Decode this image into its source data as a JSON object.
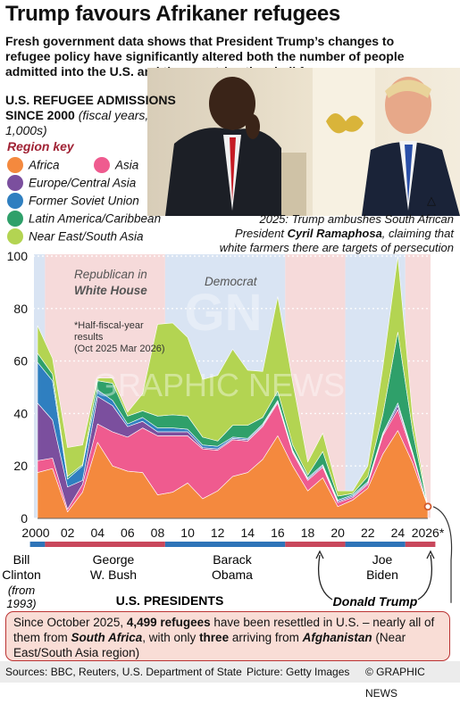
{
  "title": "Trump favours Afrikaner refugees",
  "subtitle": "Fresh government data shows that President Trump’s changes to refugee policy have significantly altered both the number of people admitted into the U.S. and the countries they hail from",
  "chart_heading": {
    "main": "U.S. REFUGEE ADMISSIONS SINCE 2000",
    "sub": "(fiscal years, 1,000s)"
  },
  "legend_title": "Region key",
  "photo_caption": {
    "pre": "2025: Trump ambushes South African President ",
    "bold": "Cyril Ramaphosa",
    "post": ", claiming that white farmers there are targets of persecution"
  },
  "colors": {
    "Africa": "#f4893e",
    "Asia": "#ef5b8f",
    "Europe/Central Asia": "#7b4f9e",
    "Former Soviet Union": "#2f7fc0",
    "Latin America/Caribbean": "#2fa06a",
    "Near East/South Asia": "#b3d452",
    "republican_band": "#f6dada",
    "democrat_band": "#d9e4f3",
    "republican_bar": "#c9485c",
    "democrat_bar": "#2f74b8"
  },
  "chart_data": {
    "type": "area",
    "stacked": true,
    "x": [
      "2000",
      "2001",
      "2002",
      "2003",
      "2004",
      "2005",
      "2006",
      "2007",
      "2008",
      "2009",
      "2010",
      "2011",
      "2012",
      "2013",
      "2014",
      "2015",
      "2016",
      "2017",
      "2018",
      "2019",
      "2020",
      "2021",
      "2022",
      "2023",
      "2024",
      "2025",
      "2026*"
    ],
    "x_tick_labels": [
      "2000",
      "02",
      "04",
      "06",
      "08",
      "10",
      "12",
      "14",
      "16",
      "18",
      "20",
      "22",
      "24",
      "2026*"
    ],
    "ylim": [
      0,
      100
    ],
    "y_ticks": [
      0,
      20,
      40,
      60,
      80,
      100
    ],
    "series": [
      {
        "name": "Africa",
        "values": [
          17.5,
          19,
          2.5,
          10,
          29,
          20,
          18,
          17.5,
          9,
          10,
          13.5,
          7.5,
          10.5,
          16,
          17.5,
          22.5,
          31.5,
          20,
          10.5,
          15.5,
          4.5,
          7,
          11.5,
          24.5,
          33.5,
          21,
          4.5
        ]
      },
      {
        "name": "Asia",
        "values": [
          4.5,
          4,
          1,
          3,
          7,
          13,
          13,
          17,
          22.5,
          21.5,
          18,
          19,
          15.5,
          14,
          12,
          12.5,
          12.5,
          5,
          4,
          4,
          1.5,
          1,
          1.5,
          7,
          8,
          3,
          0
        ]
      },
      {
        "name": "Europe/Central Asia",
        "values": [
          22,
          14.5,
          8.5,
          1.5,
          10.5,
          10,
          4,
          2.5,
          1.5,
          1.5,
          1.5,
          0.5,
          0.5,
          0.5,
          0.5,
          0.5,
          0.5,
          0.5,
          0.5,
          0.5,
          0.5,
          0.5,
          0.5,
          0.5,
          1.5,
          0.5,
          0
        ]
      },
      {
        "name": "Former Soviet Union",
        "values": [
          15.5,
          15,
          3,
          5.5,
          2.5,
          2,
          1,
          1.5,
          1.5,
          1.5,
          1,
          1,
          1,
          0.5,
          0.5,
          0.5,
          0.5,
          0.5,
          0.5,
          0.5,
          0.5,
          0.5,
          0.5,
          0.5,
          1,
          0.5,
          0
        ]
      },
      {
        "name": "Latin America/Caribbean",
        "values": [
          3.5,
          2.5,
          1,
          0.5,
          3.5,
          6.5,
          3,
          2.5,
          4.5,
          5,
          5,
          3,
          2,
          4.5,
          5,
          2.5,
          3.5,
          2,
          1,
          5,
          1.5,
          0.5,
          2,
          7,
          27,
          8,
          0
        ]
      },
      {
        "name": "Near East/South Asia",
        "values": [
          10.5,
          6,
          11,
          7.5,
          1,
          2,
          1.5,
          6.5,
          35,
          35,
          30,
          22,
          25,
          29,
          21,
          17.5,
          36,
          24,
          5,
          7,
          2,
          1,
          4,
          18,
          29,
          5,
          0
        ]
      }
    ],
    "annotation": "*Half-fiscal-year results (Oct 2025 Mar 2026)",
    "endpoint_note": "4,499 refugees",
    "party_labels": {
      "republican": "Republican in White House",
      "democrat": "Democrat"
    },
    "administrations": [
      {
        "party": "democrat",
        "from": 1999.5,
        "to": 2000.5
      },
      {
        "party": "republican",
        "from": 2000.5,
        "to": 2008.5
      },
      {
        "party": "democrat",
        "from": 2008.5,
        "to": 2016.5
      },
      {
        "party": "republican",
        "from": 2016.5,
        "to": 2020.5
      },
      {
        "party": "democrat",
        "from": 2020.5,
        "to": 2024.5
      },
      {
        "party": "republican",
        "from": 2024.5,
        "to": 2026.5
      }
    ],
    "presidents": [
      {
        "name": "Bill Clinton",
        "note": "(from 1993)"
      },
      {
        "name": "George W. Bush"
      },
      {
        "name": "Barack Obama"
      },
      {
        "name": "Joe Biden"
      },
      {
        "name": "Donald Trump"
      }
    ],
    "presidents_label": "U.S. PRESIDENTS"
  },
  "note_box": {
    "p1": "Since October 2025, ",
    "b1": "4,499 refugees",
    "p2": " have been resettled in U.S. – nearly all of them from ",
    "i1": "South Africa",
    "p3": ", with only ",
    "b2": "three",
    "p4": " arriving from ",
    "i2": "Afghanistan",
    "p5": " (Near East/South Asia region)"
  },
  "footer": {
    "sources": "Sources: BBC, Reuters, U.S. Department of State",
    "picture": "Picture: Getty Images",
    "credit": "© GRAPHIC NEWS"
  },
  "watermark": {
    "logo": "GN",
    "text": "GRAPHIC NEWS"
  }
}
